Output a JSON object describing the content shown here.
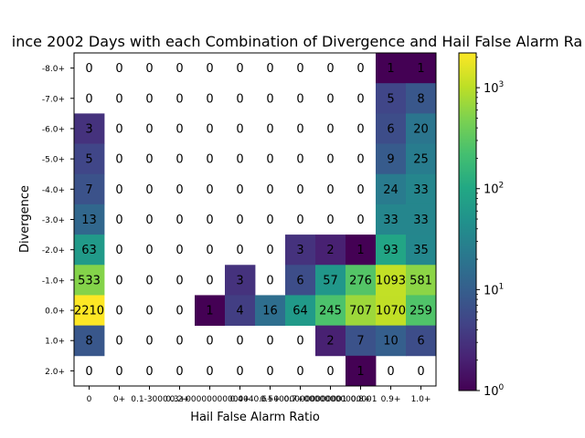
{
  "chart_data": {
    "type": "heatmap",
    "title": "ince 2002 Days with each Combination of Divergence and Hail False Alarm Ra",
    "xlabel": "Hail False Alarm Ratio",
    "ylabel": "Divergence",
    "x_tick_labels": [
      "0",
      "0+",
      "0.1-3000",
      "0.2+",
      "0.3+0000000000004",
      "0.4+",
      "0.5+",
      "0.6+00000000000001",
      "0.7+00000000000001",
      "0.8+",
      "0.9+",
      "1.0+"
    ],
    "y_tick_labels": [
      "-8.0+",
      "-7.0+",
      "-6.0+",
      "-5.0+",
      "-4.0+",
      "-3.0+",
      "-2.0+",
      "-1.0+",
      "0.0+",
      "1.0+",
      "2.0+"
    ],
    "values": [
      [
        0,
        0,
        0,
        0,
        0,
        0,
        0,
        0,
        0,
        0,
        1,
        1
      ],
      [
        0,
        0,
        0,
        0,
        0,
        0,
        0,
        0,
        0,
        0,
        5,
        8
      ],
      [
        3,
        0,
        0,
        0,
        0,
        0,
        0,
        0,
        0,
        0,
        6,
        20
      ],
      [
        5,
        0,
        0,
        0,
        0,
        0,
        0,
        0,
        0,
        0,
        9,
        25
      ],
      [
        7,
        0,
        0,
        0,
        0,
        0,
        0,
        0,
        0,
        0,
        24,
        33
      ],
      [
        13,
        0,
        0,
        0,
        0,
        0,
        0,
        0,
        0,
        0,
        33,
        33
      ],
      [
        63,
        0,
        0,
        0,
        0,
        0,
        0,
        3,
        2,
        1,
        93,
        35
      ],
      [
        533,
        0,
        0,
        0,
        0,
        3,
        0,
        6,
        57,
        276,
        1093,
        581
      ],
      [
        2210,
        0,
        0,
        0,
        1,
        4,
        16,
        64,
        245,
        707,
        1070,
        259
      ],
      [
        8,
        0,
        0,
        0,
        0,
        0,
        0,
        0,
        2,
        7,
        10,
        6
      ],
      [
        0,
        0,
        0,
        0,
        0,
        0,
        0,
        0,
        0,
        1,
        0,
        0
      ]
    ],
    "colorbar": {
      "scale": "log",
      "colormap": "viridis",
      "range": [
        1,
        2210
      ],
      "tick_labels": [
        {
          "value": 1,
          "base": "10",
          "exp": "0"
        },
        {
          "value": 10,
          "base": "10",
          "exp": "1"
        },
        {
          "value": 100,
          "base": "10",
          "exp": "2"
        },
        {
          "value": 1000,
          "base": "10",
          "exp": "3"
        }
      ]
    },
    "zero_cells": "blank",
    "grid": false
  }
}
